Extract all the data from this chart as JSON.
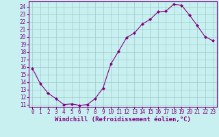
{
  "x": [
    0,
    1,
    2,
    3,
    4,
    5,
    6,
    7,
    8,
    9,
    10,
    11,
    12,
    13,
    14,
    15,
    16,
    17,
    18,
    19,
    20,
    21,
    22,
    23
  ],
  "y": [
    15.8,
    13.8,
    12.5,
    11.8,
    11.0,
    11.1,
    10.9,
    11.0,
    11.8,
    13.2,
    16.4,
    18.1,
    19.9,
    20.5,
    21.7,
    22.3,
    23.3,
    23.4,
    24.3,
    24.2,
    22.9,
    21.5,
    20.0,
    19.5
  ],
  "line_color": "#800080",
  "marker": "D",
  "marker_size": 2.0,
  "bg_color": "#c8f0f0",
  "grid_color": "#a0cccc",
  "xlabel": "Windchill (Refroidissement éolien,°C)",
  "ylim": [
    10.7,
    24.7
  ],
  "xlim": [
    -0.5,
    23.5
  ],
  "yticks": [
    11,
    12,
    13,
    14,
    15,
    16,
    17,
    18,
    19,
    20,
    21,
    22,
    23,
    24
  ],
  "xticks": [
    0,
    1,
    2,
    3,
    4,
    5,
    6,
    7,
    8,
    9,
    10,
    11,
    12,
    13,
    14,
    15,
    16,
    17,
    18,
    19,
    20,
    21,
    22,
    23
  ],
  "tick_color": "#800080",
  "border_color": "#800080",
  "label_fontsize": 5.5,
  "xlabel_fontsize": 6.5
}
